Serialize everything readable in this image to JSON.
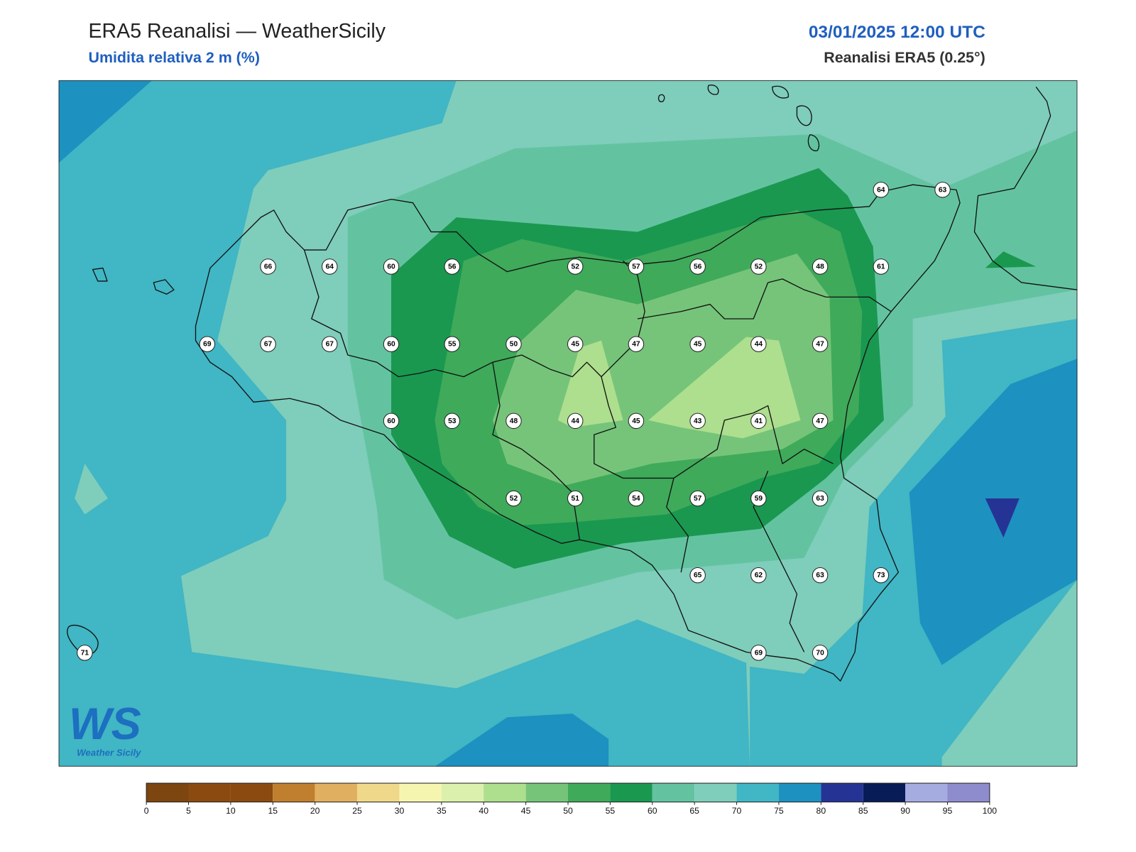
{
  "header": {
    "title": "ERA5 Reanalisi — WeatherSicily",
    "subtitle": "Umidita relativa 2 m (%)",
    "datetime": "03/01/2025 12:00 UTC",
    "source": "Reanalisi ERA5 (0.25°)"
  },
  "stations": [
    64,
    63,
    66,
    64,
    60,
    56,
    52,
    57,
    56,
    52,
    48,
    61,
    69,
    67,
    67,
    60,
    55,
    50,
    45,
    47,
    45,
    44,
    47,
    60,
    53,
    48,
    44,
    45,
    43,
    41,
    47,
    52,
    51,
    54,
    57,
    59,
    63,
    65,
    62,
    63,
    73,
    71,
    69,
    70
  ],
  "colorbar": {
    "ticks": [
      0,
      5,
      10,
      15,
      20,
      25,
      30,
      35,
      40,
      45,
      50,
      55,
      60,
      65,
      70,
      75,
      80,
      85,
      90,
      95,
      100
    ],
    "colors": [
      "#7d4510",
      "#8b4a10",
      "#8b4a10",
      "#c07f2e",
      "#e0b060",
      "#f0d88a",
      "#f5f5b0",
      "#daf0ac",
      "#addf8e",
      "#76c47a",
      "#3faa5a",
      "#1a9850",
      "#63c3a0",
      "#7fcdbb",
      "#41b6c4",
      "#1d91c0",
      "#253494",
      "#081d58",
      "#a5acdf",
      "#8e8ccc"
    ]
  },
  "logo": {
    "mark": "WS",
    "text": "Weather Sicily"
  }
}
